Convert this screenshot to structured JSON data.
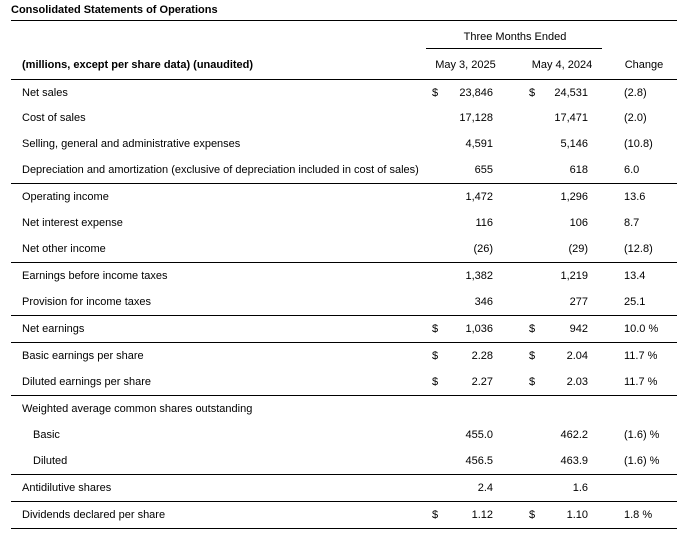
{
  "title": "Consolidated Statements of Operations",
  "period_header": "Three Months Ended",
  "columns": {
    "label": "(millions, except per share data) (unaudited)",
    "c1": "May 3, 2025",
    "c2": "May 4, 2024",
    "c3": "Change"
  },
  "rows": [
    {
      "label": "Net sales",
      "d1": "$",
      "v1": "23,846",
      "d2": "$",
      "v2": "24,531",
      "ch": "(2.8)"
    },
    {
      "label": "Cost of sales",
      "d1": "",
      "v1": "17,128",
      "d2": "",
      "v2": "17,471",
      "ch": "(2.0)"
    },
    {
      "label": "Selling, general and administrative expenses",
      "d1": "",
      "v1": "4,591",
      "d2": "",
      "v2": "5,146",
      "ch": "(10.8)"
    },
    {
      "label": "Depreciation and amortization (exclusive of depreciation included in cost of sales)",
      "d1": "",
      "v1": "655",
      "d2": "",
      "v2": "618",
      "ch": "6.0"
    },
    {
      "label": "Operating income",
      "d1": "",
      "v1": "1,472",
      "d2": "",
      "v2": "1,296",
      "ch": "13.6"
    },
    {
      "label": "Net interest expense",
      "d1": "",
      "v1": "116",
      "d2": "",
      "v2": "106",
      "ch": "8.7"
    },
    {
      "label": "Net other income",
      "d1": "",
      "v1": "(26)",
      "d2": "",
      "v2": "(29)",
      "ch": "(12.8)"
    },
    {
      "label": "Earnings before income taxes",
      "d1": "",
      "v1": "1,382",
      "d2": "",
      "v2": "1,219",
      "ch": "13.4"
    },
    {
      "label": "Provision for income taxes",
      "d1": "",
      "v1": "346",
      "d2": "",
      "v2": "277",
      "ch": "25.1"
    },
    {
      "label": "Net earnings",
      "d1": "$",
      "v1": "1,036",
      "d2": "$",
      "v2": "942",
      "ch": "10.0 %"
    },
    {
      "label": "Basic earnings per share",
      "d1": "$",
      "v1": "2.28",
      "d2": "$",
      "v2": "2.04",
      "ch": "11.7 %"
    },
    {
      "label": "Diluted earnings per share",
      "d1": "$",
      "v1": "2.27",
      "d2": "$",
      "v2": "2.03",
      "ch": "11.7 %"
    },
    {
      "label": "Weighted average common shares outstanding",
      "d1": "",
      "v1": "",
      "d2": "",
      "v2": "",
      "ch": ""
    },
    {
      "label": "Basic",
      "d1": "",
      "v1": "455.0",
      "d2": "",
      "v2": "462.2",
      "ch": "(1.6) %"
    },
    {
      "label": "Diluted",
      "d1": "",
      "v1": "456.5",
      "d2": "",
      "v2": "463.9",
      "ch": "(1.6) %"
    },
    {
      "label": "Antidilutive shares",
      "d1": "",
      "v1": "2.4",
      "d2": "",
      "v2": "1.6",
      "ch": ""
    },
    {
      "label": "Dividends declared per share",
      "d1": "$",
      "v1": "1.12",
      "d2": "$",
      "v2": "1.10",
      "ch": "1.8 %"
    }
  ]
}
